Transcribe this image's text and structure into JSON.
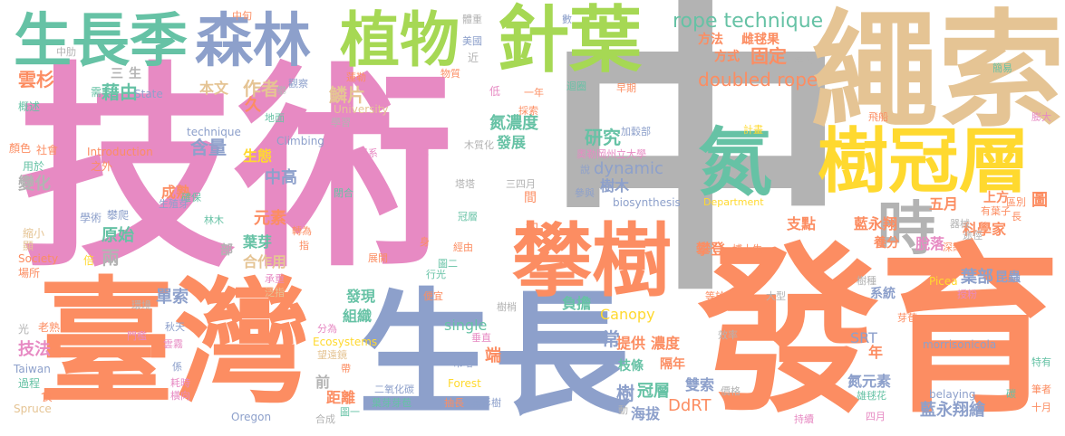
{
  "colors": {
    "pink": "#e78ac3",
    "gray": "#b3b3b3",
    "orange": "#fc8d62",
    "blue": "#8da0cb",
    "green": "#66c2a5",
    "lime": "#a6d854",
    "yellow": "#ffd92f",
    "tan": "#e5c494"
  },
  "words": [
    {
      "text": "中",
      "color": "gray"
    },
    {
      "text": "技術",
      "color": "pink"
    },
    {
      "text": "發育",
      "color": "orange"
    },
    {
      "text": "臺灣",
      "color": "orange"
    },
    {
      "text": "生長",
      "color": "blue"
    },
    {
      "text": "繩索",
      "color": "tan"
    },
    {
      "text": "攀樹",
      "color": "orange"
    },
    {
      "text": "樹冠層",
      "color": "yellow"
    },
    {
      "text": "針葉",
      "color": "lime"
    },
    {
      "text": "植物",
      "color": "lime"
    },
    {
      "text": "森林",
      "color": "blue"
    },
    {
      "text": "生長季",
      "color": "green"
    },
    {
      "text": "氮",
      "color": "green"
    },
    {
      "text": "時",
      "color": "gray"
    },
    {
      "text": "rope technique",
      "color": "green"
    },
    {
      "text": "doubled rope",
      "color": "orange"
    },
    {
      "text": "研究",
      "color": "green"
    },
    {
      "text": "固定",
      "color": "orange"
    },
    {
      "text": "方法",
      "color": "orange"
    },
    {
      "text": "雌毬果",
      "color": "orange"
    },
    {
      "text": "方式",
      "color": "orange"
    },
    {
      "text": "雲杉",
      "color": "orange"
    },
    {
      "text": "藉由",
      "color": "green"
    },
    {
      "text": "本文",
      "color": "tan"
    },
    {
      "text": "作者",
      "color": "tan"
    },
    {
      "text": "鱗片",
      "color": "tan"
    },
    {
      "text": "氮濃度",
      "color": "green"
    },
    {
      "text": "含量",
      "color": "blue"
    },
    {
      "text": "生態",
      "color": "yellow"
    },
    {
      "text": "發展",
      "color": "green"
    },
    {
      "text": "dynamic",
      "color": "blue"
    },
    {
      "text": "樹木",
      "color": "blue"
    },
    {
      "text": "中高",
      "color": "blue"
    },
    {
      "text": "變化",
      "color": "gray"
    },
    {
      "text": "成熟",
      "color": "orange"
    },
    {
      "text": "元素",
      "color": "orange"
    },
    {
      "text": "原始",
      "color": "green"
    },
    {
      "text": "葉芽",
      "color": "green"
    },
    {
      "text": "合作用",
      "color": "tan"
    },
    {
      "text": "兩",
      "color": "gray"
    },
    {
      "text": "單索",
      "color": "blue"
    },
    {
      "text": "發現",
      "color": "green"
    },
    {
      "text": "組織",
      "color": "green"
    },
    {
      "text": "single",
      "color": "green"
    },
    {
      "text": "Canopy",
      "color": "yellow"
    },
    {
      "text": "提供",
      "color": "orange"
    },
    {
      "text": "濃度",
      "color": "orange"
    },
    {
      "text": "隔年",
      "color": "orange"
    },
    {
      "text": "枝條",
      "color": "green"
    },
    {
      "text": "冠層",
      "color": "green"
    },
    {
      "text": "雙索",
      "color": "blue"
    },
    {
      "text": "DdRT",
      "color": "orange"
    },
    {
      "text": "海拔",
      "color": "blue"
    },
    {
      "text": "負擔",
      "color": "green"
    },
    {
      "text": "支點",
      "color": "orange"
    },
    {
      "text": "攀登",
      "color": "orange"
    },
    {
      "text": "藍永翔",
      "color": "orange"
    },
    {
      "text": "養分",
      "color": "orange"
    },
    {
      "text": "五月",
      "color": "orange"
    },
    {
      "text": "葉部",
      "color": "blue"
    },
    {
      "text": "科學家",
      "color": "orange"
    },
    {
      "text": "脫落",
      "color": "pink"
    },
    {
      "text": "系統",
      "color": "blue"
    },
    {
      "text": "SRT",
      "color": "blue"
    },
    {
      "text": "年",
      "color": "orange"
    },
    {
      "text": "氮元素",
      "color": "blue"
    },
    {
      "text": "藍永翔繪",
      "color": "blue"
    },
    {
      "text": "上方",
      "color": "orange"
    },
    {
      "text": "常",
      "color": "blue"
    },
    {
      "text": "端",
      "color": "orange"
    },
    {
      "text": "樹",
      "color": "blue"
    },
    {
      "text": "技法",
      "color": "pink"
    },
    {
      "text": "距離",
      "color": "orange"
    },
    {
      "text": "前",
      "color": "gray"
    },
    {
      "text": "久",
      "color": "orange"
    },
    {
      "text": "部",
      "color": "gray"
    },
    {
      "text": "昆蟲",
      "color": "blue"
    },
    {
      "text": "圖",
      "color": "orange"
    },
    {
      "text": "三",
      "color": "gray"
    },
    {
      "text": "生",
      "color": "gray"
    },
    {
      "text": "中旬",
      "color": "orange"
    },
    {
      "text": "中肋",
      "color": "gray"
    },
    {
      "text": "需",
      "color": "green"
    },
    {
      "text": "概述",
      "color": "green"
    },
    {
      "text": "顏色",
      "color": "orange"
    },
    {
      "text": "社會",
      "color": "orange"
    },
    {
      "text": "用於",
      "color": "green"
    },
    {
      "text": "之外",
      "color": "orange"
    },
    {
      "text": "學術",
      "color": "blue"
    },
    {
      "text": "攀爬",
      "color": "blue"
    },
    {
      "text": "縮小",
      "color": "tan"
    },
    {
      "text": "顯",
      "color": "tan"
    },
    {
      "text": "Society",
      "color": "orange"
    },
    {
      "text": "倍",
      "color": "yellow"
    },
    {
      "text": "場所",
      "color": "orange"
    },
    {
      "text": "光",
      "color": "gray"
    },
    {
      "text": "老熟",
      "color": "orange"
    },
    {
      "text": "Taiwan",
      "color": "blue"
    },
    {
      "text": "過程",
      "color": "green"
    },
    {
      "text": "食",
      "color": "orange"
    },
    {
      "text": "Spruce",
      "color": "tan"
    },
    {
      "text": "State",
      "color": "blue"
    },
    {
      "text": "technique",
      "color": "blue"
    },
    {
      "text": "Introduction",
      "color": "orange"
    },
    {
      "text": "University",
      "color": "tan"
    },
    {
      "text": "Climbing",
      "color": "blue"
    },
    {
      "text": "Ecosystems",
      "color": "yellow"
    },
    {
      "text": "Forest",
      "color": "yellow"
    },
    {
      "text": "Oregon",
      "color": "blue"
    },
    {
      "text": "biosynthesis",
      "color": "blue"
    },
    {
      "text": "Department",
      "color": "yellow"
    },
    {
      "text": "morrisonicola",
      "color": "blue"
    },
    {
      "text": "Picea",
      "color": "yellow"
    },
    {
      "text": "belaying",
      "color": "blue"
    },
    {
      "text": "觀察",
      "color": "blue"
    },
    {
      "text": "蓮勒",
      "color": "orange"
    },
    {
      "text": "攀",
      "color": "gray"
    },
    {
      "text": "物質",
      "color": "orange"
    },
    {
      "text": "近",
      "color": "gray"
    },
    {
      "text": "美國",
      "color": "blue"
    },
    {
      "text": "體重",
      "color": "gray"
    },
    {
      "text": "數",
      "color": "blue"
    },
    {
      "text": "低",
      "color": "pink"
    },
    {
      "text": "一年",
      "color": "orange"
    },
    {
      "text": "採索",
      "color": "orange"
    },
    {
      "text": "迴圈",
      "color": "green"
    },
    {
      "text": "早期",
      "color": "orange"
    },
    {
      "text": "年代",
      "color": "gray"
    },
    {
      "text": "簡易",
      "color": "green"
    },
    {
      "text": "膨大",
      "color": "pink"
    },
    {
      "text": "飛船",
      "color": "orange"
    },
    {
      "text": "計畫",
      "color": "yellow"
    },
    {
      "text": "地面",
      "color": "green"
    },
    {
      "text": "學習",
      "color": "gray"
    },
    {
      "text": "學系",
      "color": "pink"
    },
    {
      "text": "木質化",
      "color": "gray"
    },
    {
      "text": "加穀部",
      "color": "blue"
    },
    {
      "text": "奧勒岡州立大學",
      "color": "pink"
    },
    {
      "text": "說",
      "color": "blue"
    },
    {
      "text": "參與",
      "color": "blue"
    },
    {
      "text": "三四月",
      "color": "gray"
    },
    {
      "text": "塔塔",
      "color": "gray"
    },
    {
      "text": "間",
      "color": "orange"
    },
    {
      "text": "約",
      "color": "orange"
    },
    {
      "text": "閉合",
      "color": "green"
    },
    {
      "text": "確保",
      "color": "green"
    },
    {
      "text": "林木",
      "color": "green"
    },
    {
      "text": "生殖芽",
      "color": "blue"
    },
    {
      "text": "門檻",
      "color": "pink"
    },
    {
      "text": "轉為",
      "color": "orange"
    },
    {
      "text": "指",
      "color": "orange"
    },
    {
      "text": "承重",
      "color": "pink"
    },
    {
      "text": "泛指",
      "color": "tan"
    },
    {
      "text": "環境",
      "color": "gray"
    },
    {
      "text": "秋天",
      "color": "blue"
    },
    {
      "text": "雲霧",
      "color": "pink"
    },
    {
      "text": "係",
      "color": "blue"
    },
    {
      "text": "耗時",
      "color": "pink"
    },
    {
      "text": "橫向",
      "color": "pink"
    },
    {
      "text": "分為",
      "color": "pink"
    },
    {
      "text": "望遠鏡",
      "color": "tan"
    },
    {
      "text": "帶",
      "color": "orange"
    },
    {
      "text": "合成",
      "color": "gray"
    },
    {
      "text": "二氧化碳",
      "color": "blue"
    },
    {
      "text": "葉芽芽苞",
      "color": "green"
    },
    {
      "text": "圖一",
      "color": "green"
    },
    {
      "text": "垂直",
      "color": "pink"
    },
    {
      "text": "吊塔",
      "color": "blue"
    },
    {
      "text": "抽長",
      "color": "orange"
    },
    {
      "text": "雲杉樹",
      "color": "blue"
    },
    {
      "text": "樹梢",
      "color": "gray"
    },
    {
      "text": "便宜",
      "color": "orange"
    },
    {
      "text": "行光",
      "color": "green"
    },
    {
      "text": "圖二",
      "color": "green"
    },
    {
      "text": "經由",
      "color": "orange"
    },
    {
      "text": "展開",
      "color": "orange"
    },
    {
      "text": "身",
      "color": "orange"
    },
    {
      "text": "冠層",
      "color": "green"
    },
    {
      "text": "鏡",
      "color": "pink"
    },
    {
      "text": "動",
      "color": "gray"
    },
    {
      "text": "價格",
      "color": "gray"
    },
    {
      "text": "持續",
      "color": "pink"
    },
    {
      "text": "四月",
      "color": "pink"
    },
    {
      "text": "十月",
      "color": "orange"
    },
    {
      "text": "筆者",
      "color": "orange"
    },
    {
      "text": "特有",
      "color": "green"
    },
    {
      "text": "碳",
      "color": "green"
    },
    {
      "text": "雄毬花",
      "color": "green"
    },
    {
      "text": "效率",
      "color": "gray"
    },
    {
      "text": "等於",
      "color": "orange"
    },
    {
      "text": "大型",
      "color": "gray"
    },
    {
      "text": "授粉",
      "color": "pink"
    },
    {
      "text": "芽苞",
      "color": "orange"
    },
    {
      "text": "樹種",
      "color": "gray"
    },
    {
      "text": "深綠",
      "color": "orange"
    },
    {
      "text": "器械",
      "color": "gray"
    },
    {
      "text": "途徑",
      "color": "gray"
    },
    {
      "text": "博士生",
      "color": "orange"
    },
    {
      "text": "區別",
      "color": "orange"
    },
    {
      "text": "長",
      "color": "orange"
    },
    {
      "text": "有葉子",
      "color": "orange"
    }
  ]
}
